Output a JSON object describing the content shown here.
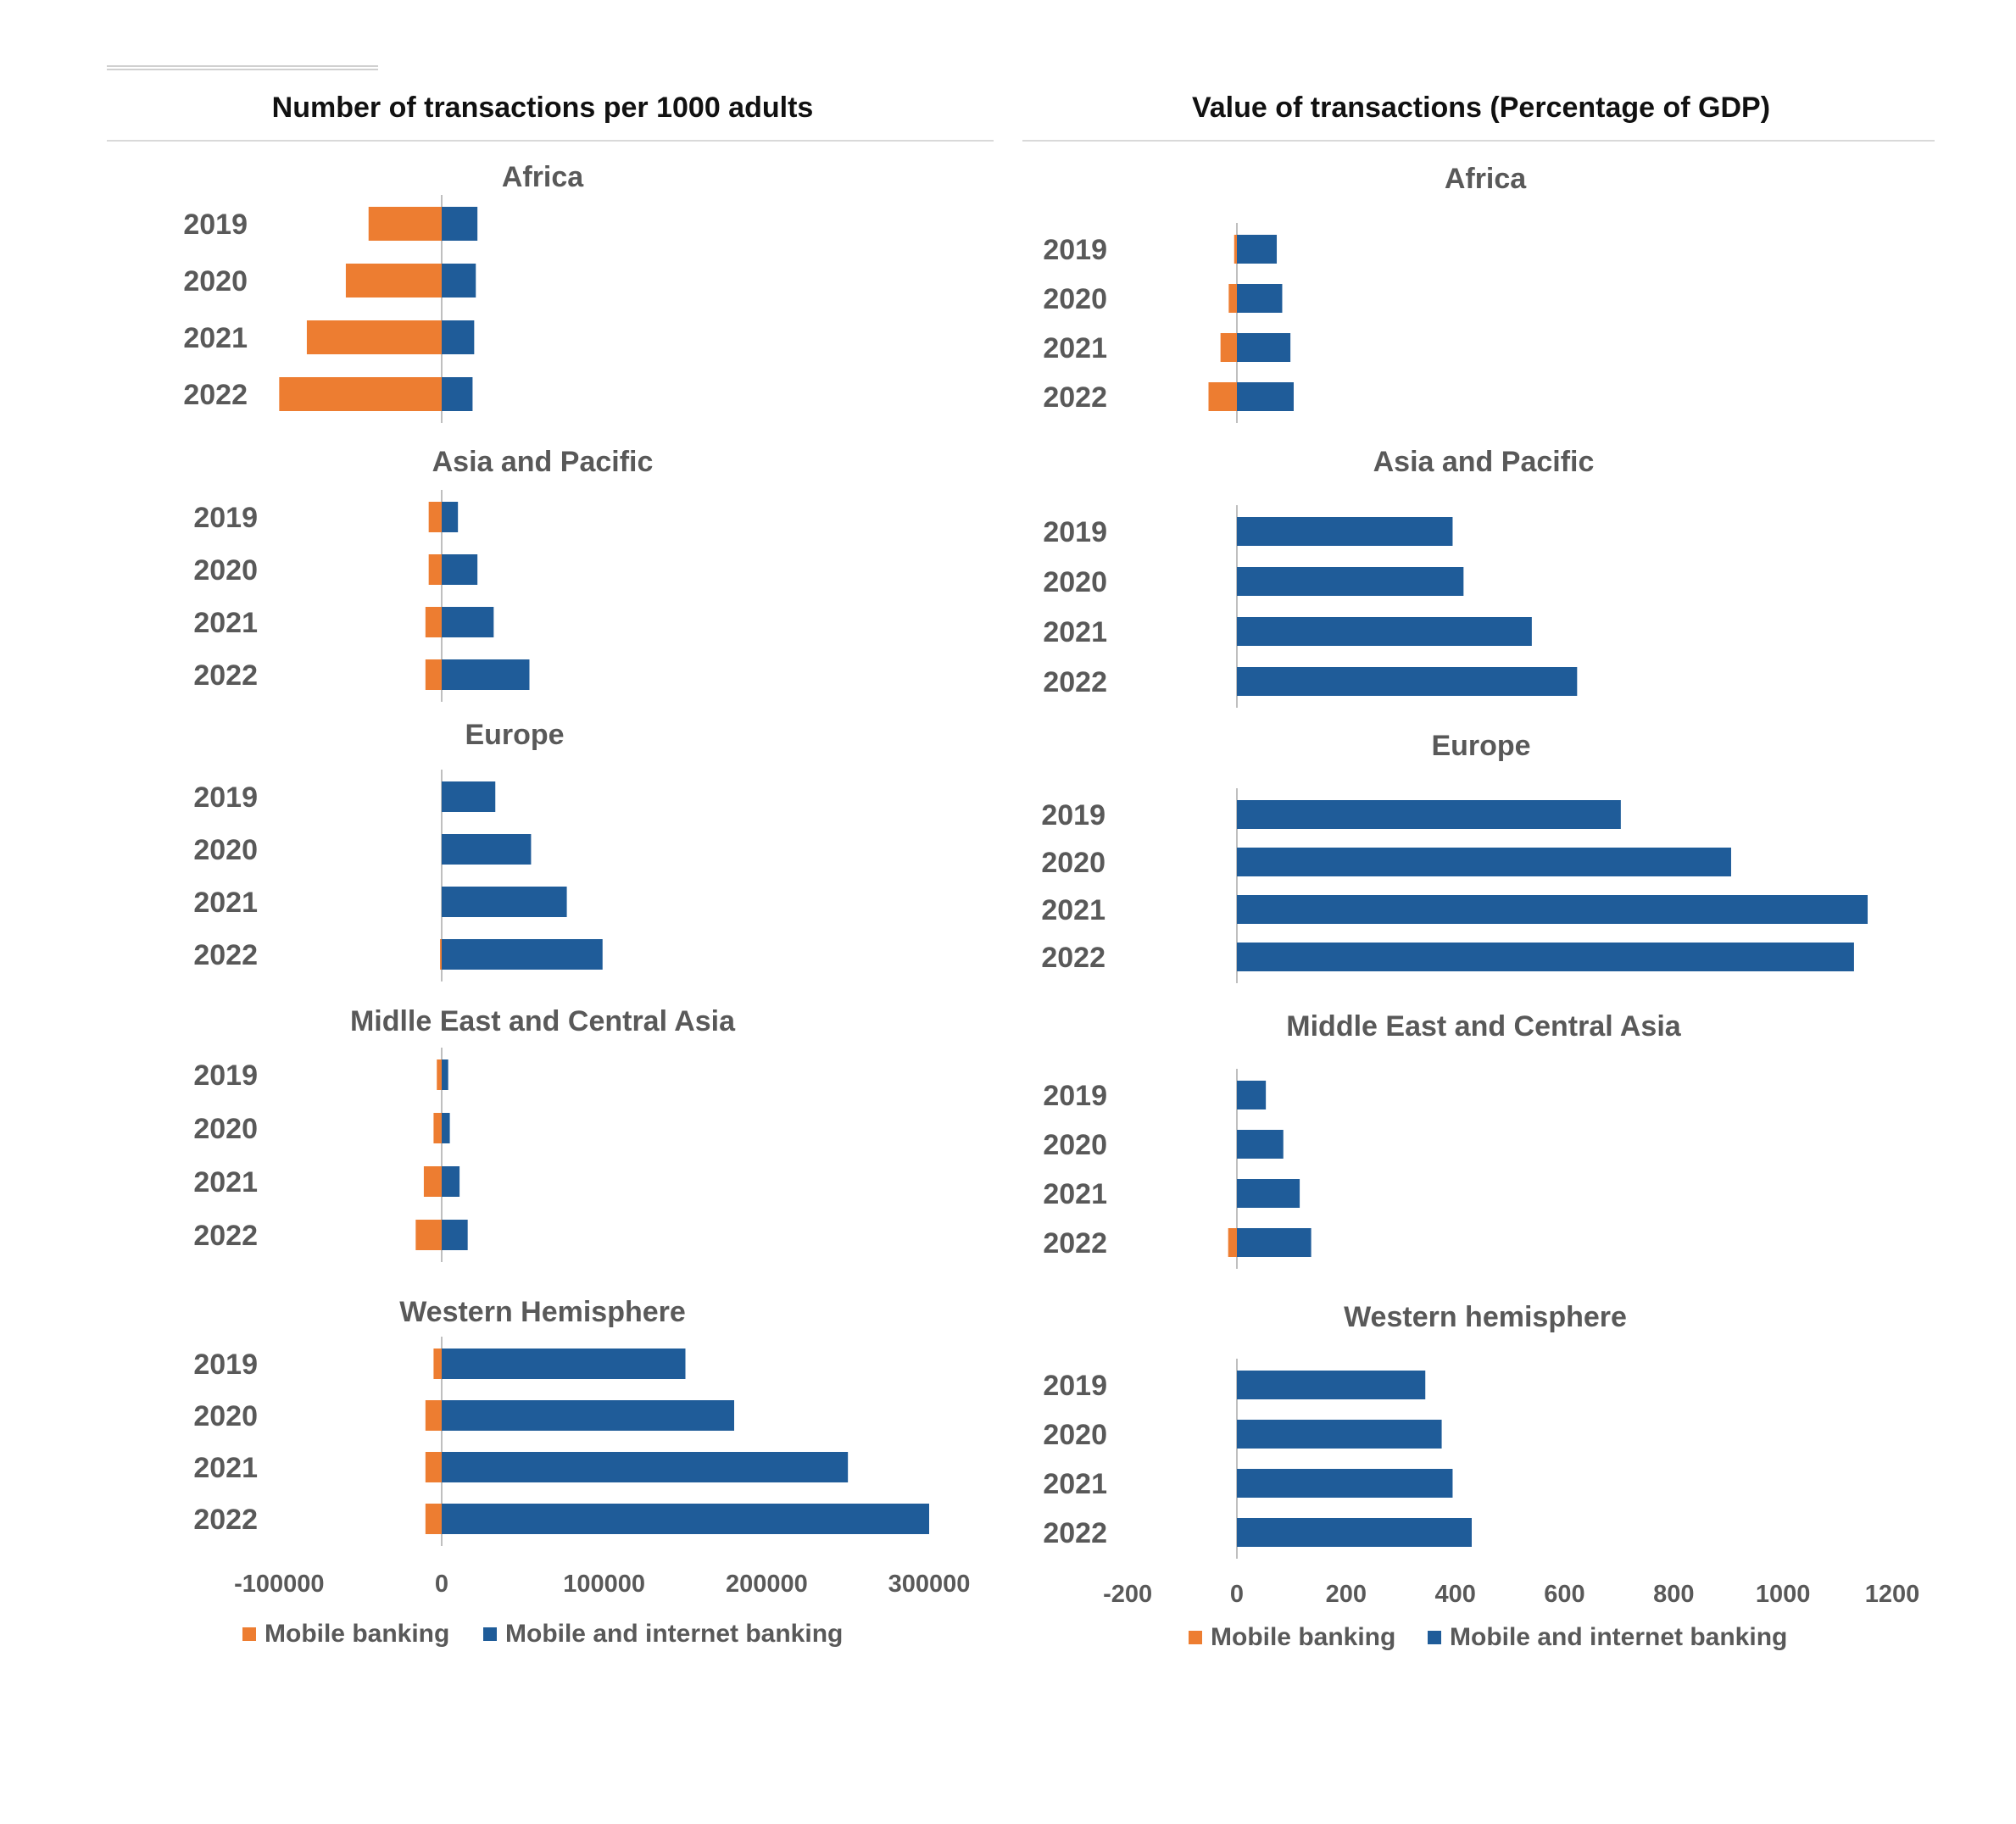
{
  "colors": {
    "mobile_banking": "#ED7D31",
    "mobile_internet": "#1F5C99",
    "axis": "#bfbfbf",
    "text": "#595959"
  },
  "chart_data": [
    {
      "type": "bar",
      "orientation": "horizontal",
      "stacked": "diverging",
      "title": "Number of transactions per 1000 adults",
      "xlim": [
        -100000,
        300000
      ],
      "xticks": [
        "-100000",
        "0",
        "100000",
        "200000",
        "300000"
      ],
      "categories": [
        "2019",
        "2020",
        "2021",
        "2022"
      ],
      "legend": {
        "position": "bottom",
        "entries": [
          "Mobile banking",
          "Mobile and internet banking"
        ]
      },
      "panels": [
        {
          "title": "Africa",
          "series": [
            {
              "name": "Mobile banking",
              "values": [
                -45000,
                -59000,
                -83000,
                -100000
              ]
            },
            {
              "name": "Mobile and internet banking",
              "values": [
                22000,
                21000,
                20000,
                19000
              ]
            }
          ]
        },
        {
          "title": "Asia and Pacific",
          "series": [
            {
              "name": "Mobile banking",
              "values": [
                -8000,
                -8000,
                -10000,
                -10000
              ]
            },
            {
              "name": "Mobile and internet banking",
              "values": [
                10000,
                22000,
                32000,
                54000
              ]
            }
          ]
        },
        {
          "title": "Europe",
          "series": [
            {
              "name": "Mobile banking",
              "values": [
                0,
                0,
                0,
                -1000
              ]
            },
            {
              "name": "Mobile and internet banking",
              "values": [
                33000,
                55000,
                77000,
                99000
              ]
            }
          ]
        },
        {
          "title": "Midlle East and Central Asia",
          "series": [
            {
              "name": "Mobile banking",
              "values": [
                -3000,
                -5000,
                -11000,
                -16000
              ]
            },
            {
              "name": "Mobile and internet banking",
              "values": [
                4000,
                5000,
                11000,
                16000
              ]
            }
          ]
        },
        {
          "title": "Western Hemisphere",
          "series": [
            {
              "name": "Mobile banking",
              "values": [
                -5000,
                -10000,
                -10000,
                -10000
              ]
            },
            {
              "name": "Mobile and internet banking",
              "values": [
                150000,
                180000,
                250000,
                300000
              ]
            }
          ]
        }
      ]
    },
    {
      "type": "bar",
      "orientation": "horizontal",
      "stacked": "diverging",
      "title": "Value of transactions (Percentage of GDP)",
      "xlim": [
        -200,
        1200
      ],
      "xticks": [
        "-200",
        "0",
        "200",
        "400",
        "600",
        "800",
        "1000",
        "1200"
      ],
      "categories": [
        "2019",
        "2020",
        "2021",
        "2022"
      ],
      "legend": {
        "position": "bottom",
        "entries": [
          "Mobile banking",
          "Mobile and internet banking"
        ]
      },
      "panels": [
        {
          "title": "Africa",
          "series": [
            {
              "name": "Mobile banking",
              "values": [
                -5,
                -15,
                -30,
                -52
              ]
            },
            {
              "name": "Mobile and internet banking",
              "values": [
                73,
                83,
                98,
                104
              ]
            }
          ]
        },
        {
          "title": "Asia and Pacific",
          "series": [
            {
              "name": "Mobile banking",
              "values": [
                0,
                0,
                0,
                0
              ]
            },
            {
              "name": "Mobile and internet banking",
              "values": [
                395,
                415,
                540,
                623
              ]
            }
          ]
        },
        {
          "title": "Europe",
          "series": [
            {
              "name": "Mobile banking",
              "values": [
                0,
                0,
                0,
                0
              ]
            },
            {
              "name": "Mobile and internet banking",
              "values": [
                703,
                905,
                1155,
                1130
              ]
            }
          ]
        },
        {
          "title": "Middle East and Central Asia",
          "series": [
            {
              "name": "Mobile banking",
              "values": [
                0,
                0,
                0,
                -16
              ]
            },
            {
              "name": "Mobile and internet banking",
              "values": [
                53,
                85,
                115,
                136
              ]
            }
          ]
        },
        {
          "title": "Western hemisphere",
          "series": [
            {
              "name": "Mobile banking",
              "values": [
                0,
                0,
                0,
                0
              ]
            },
            {
              "name": "Mobile and internet banking",
              "values": [
                345,
                375,
                395,
                430
              ]
            }
          ]
        }
      ]
    }
  ]
}
